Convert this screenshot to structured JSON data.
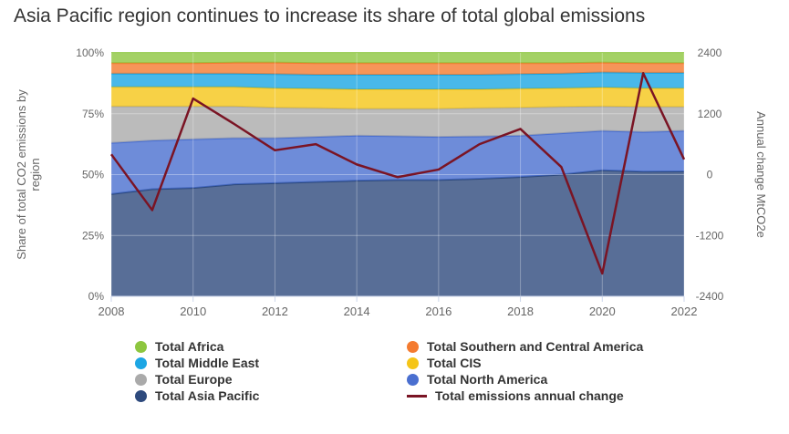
{
  "chart_data": {
    "type": "area",
    "title": "Asia Pacific region continues to increase its share of total global emissions",
    "x": [
      2008,
      2009,
      2010,
      2011,
      2012,
      2013,
      2014,
      2015,
      2016,
      2017,
      2018,
      2019,
      2020,
      2021,
      2022
    ],
    "x_ticks": [
      "2008",
      "2010",
      "2012",
      "2014",
      "2016",
      "2018",
      "2020",
      "2022"
    ],
    "ylabel": "Share of total CO2 emissions by region",
    "y_ticks": [
      "0%",
      "25%",
      "50%",
      "75%",
      "100%"
    ],
    "ylim": [
      0,
      100
    ],
    "y2label": "Annual change MtCO2e",
    "y2_ticks": [
      "-2400",
      "-1200",
      "0",
      "1200",
      "2400"
    ],
    "y2lim": [
      -2400,
      2400
    ],
    "stacked_percent": true,
    "grid": true,
    "legend_position": "bottom",
    "series": [
      {
        "name": "Total Asia Pacific",
        "color": "#2e4a7d",
        "cumulative_top": [
          42.0,
          44.0,
          44.5,
          46.0,
          46.5,
          47.0,
          47.5,
          47.8,
          47.8,
          48.3,
          49.0,
          50.0,
          51.8,
          51.2,
          51.3
        ]
      },
      {
        "name": "Total North America",
        "color": "#4a6fd0",
        "cumulative_top": [
          63.0,
          64.0,
          64.5,
          65.0,
          65.0,
          65.5,
          66.0,
          65.8,
          65.5,
          65.7,
          66.0,
          67.0,
          68.0,
          67.5,
          68.0
        ]
      },
      {
        "name": "Total Europe",
        "color": "#aaaaaa",
        "cumulative_top": [
          78.0,
          78.0,
          78.0,
          78.0,
          77.5,
          77.3,
          77.0,
          77.0,
          77.0,
          77.3,
          77.5,
          77.8,
          78.0,
          77.8,
          77.8
        ]
      },
      {
        "name": "Total CIS",
        "color": "#f5c518",
        "cumulative_top": [
          86.0,
          86.0,
          86.0,
          86.0,
          85.5,
          85.3,
          85.0,
          85.0,
          85.0,
          85.0,
          85.3,
          85.5,
          85.8,
          85.5,
          85.5
        ]
      },
      {
        "name": "Total Middle East",
        "color": "#1ca6e4",
        "cumulative_top": [
          91.5,
          91.5,
          91.5,
          91.5,
          91.3,
          91.0,
          91.0,
          91.0,
          91.0,
          91.0,
          91.3,
          91.5,
          92.0,
          91.8,
          91.8
        ]
      },
      {
        "name": "Total Southern and Central America",
        "color": "#f47b30",
        "cumulative_top": [
          95.8,
          95.8,
          95.8,
          96.0,
          96.0,
          95.8,
          95.8,
          95.8,
          95.8,
          95.8,
          95.8,
          95.8,
          96.0,
          95.8,
          95.8
        ]
      },
      {
        "name": "Total Africa",
        "color": "#8dc63f",
        "cumulative_top": [
          100,
          100,
          100,
          100,
          100,
          100,
          100,
          100,
          100,
          100,
          100,
          100,
          100,
          100,
          100
        ]
      }
    ],
    "line_series": {
      "name": "Total emissions annual change",
      "color": "#7a1424",
      "axis": "right",
      "values": [
        400,
        -700,
        1500,
        1000,
        480,
        600,
        200,
        -50,
        100,
        600,
        900,
        150,
        -1950,
        2000,
        300
      ]
    }
  },
  "legend": [
    {
      "label": "Total Africa",
      "color": "#8dc63f",
      "kind": "dot"
    },
    {
      "label": "Total Southern and Central America",
      "color": "#f47b30",
      "kind": "dot"
    },
    {
      "label": "Total Middle East",
      "color": "#1ca6e4",
      "kind": "dot"
    },
    {
      "label": "Total CIS",
      "color": "#f5c518",
      "kind": "dot"
    },
    {
      "label": "Total Europe",
      "color": "#aaaaaa",
      "kind": "dot"
    },
    {
      "label": "Total North America",
      "color": "#4a6fd0",
      "kind": "dot"
    },
    {
      "label": "Total Asia Pacific",
      "color": "#2e4a7d",
      "kind": "dot"
    },
    {
      "label": "Total emissions annual change",
      "color": "#7a1424",
      "kind": "line"
    }
  ]
}
